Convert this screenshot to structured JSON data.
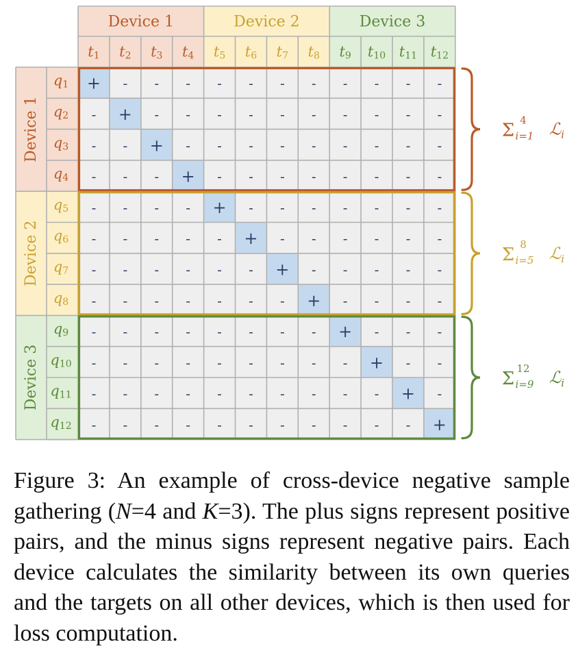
{
  "devices": [
    {
      "label": "Device 1",
      "bg": "#f6ddd0",
      "border": "#bb5a26",
      "targets": [
        "t",
        "t",
        "t",
        "t"
      ],
      "target_subs": [
        "1",
        "2",
        "3",
        "4"
      ],
      "queries": [
        "q",
        "q",
        "q",
        "q"
      ],
      "query_subs": [
        "1",
        "2",
        "3",
        "4"
      ],
      "loss": {
        "sum": "Σ",
        "upper": "4",
        "lower": "i=1",
        "term": "ℒ",
        "term_sub": "i"
      }
    },
    {
      "label": "Device 2",
      "bg": "#fdf0c8",
      "border": "#c9a12e",
      "targets": [
        "t",
        "t",
        "t",
        "t"
      ],
      "target_subs": [
        "5",
        "6",
        "7",
        "8"
      ],
      "queries": [
        "q",
        "q",
        "q",
        "q"
      ],
      "query_subs": [
        "5",
        "6",
        "7",
        "8"
      ],
      "loss": {
        "sum": "Σ",
        "upper": "8",
        "lower": "i=5",
        "term": "ℒ",
        "term_sub": "i"
      }
    },
    {
      "label": "Device 3",
      "bg": "#e0efd8",
      "border": "#5d8a3c",
      "targets": [
        "t",
        "t",
        "t",
        "t"
      ],
      "target_subs": [
        "9",
        "10",
        "11",
        "12"
      ],
      "queries": [
        "q",
        "q",
        "q",
        "q"
      ],
      "query_subs": [
        "9",
        "10",
        "11",
        "12"
      ],
      "loss": {
        "sum": "Σ",
        "upper": "12",
        "lower": "i=9",
        "term": "ℒ",
        "term_sub": "i"
      }
    }
  ],
  "cells": {
    "positive": "+",
    "negative": "-",
    "positive_bg": "#c5d9ee",
    "negative_bg": "#efefef",
    "grid_line": "#b0b0b0"
  },
  "caption": {
    "part1": "Figure 3: An example of cross-device negative sample gathering (",
    "n_var": "N",
    "n_eq": "=4 and ",
    "k_var": "K",
    "k_eq": "=3).",
    "part2": " The plus signs represent positive pairs, and the minus signs represent negative pairs. Each device calculates the similarity between its own queries and the targets on all other devices, which is then used for loss computation."
  }
}
